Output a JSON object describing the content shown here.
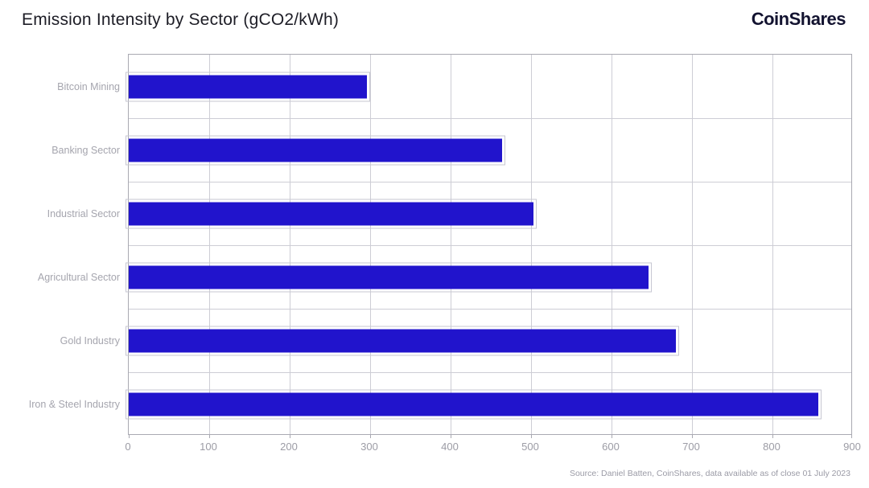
{
  "header": {
    "title": "Emission Intensity by Sector (gCO2/kWh)",
    "brand": "CoinShares"
  },
  "chart_data": {
    "type": "bar",
    "orientation": "horizontal",
    "title": "Emission Intensity by Sector (gCO2/kWh)",
    "categories": [
      "Bitcoin Mining",
      "Banking Sector",
      "Industrial Sector",
      "Agricultural Sector",
      "Gold Industry",
      "Iron & Steel Industry"
    ],
    "values": [
      296,
      464,
      503,
      646,
      680,
      857
    ],
    "xlabel": "",
    "ylabel": "",
    "xlim": [
      0,
      900
    ],
    "xticks": [
      0,
      100,
      200,
      300,
      400,
      500,
      600,
      700,
      800,
      900
    ],
    "grid": true,
    "legend": "none",
    "bar_color": "#2114cc",
    "source": "Source: Daniel Batten, CoinShares, data available as of close 01 July 2023"
  },
  "colors": {
    "bar": "#2114cc",
    "gridline": "#cdcdd5",
    "plot_border": "#a9a9b2",
    "label_text": "#a5a5ae",
    "tick_text": "#9c9ca5",
    "title_text": "#1d1d26",
    "brand_text": "#131330",
    "source_text": "#9b9ba6",
    "background": "#ffffff"
  }
}
